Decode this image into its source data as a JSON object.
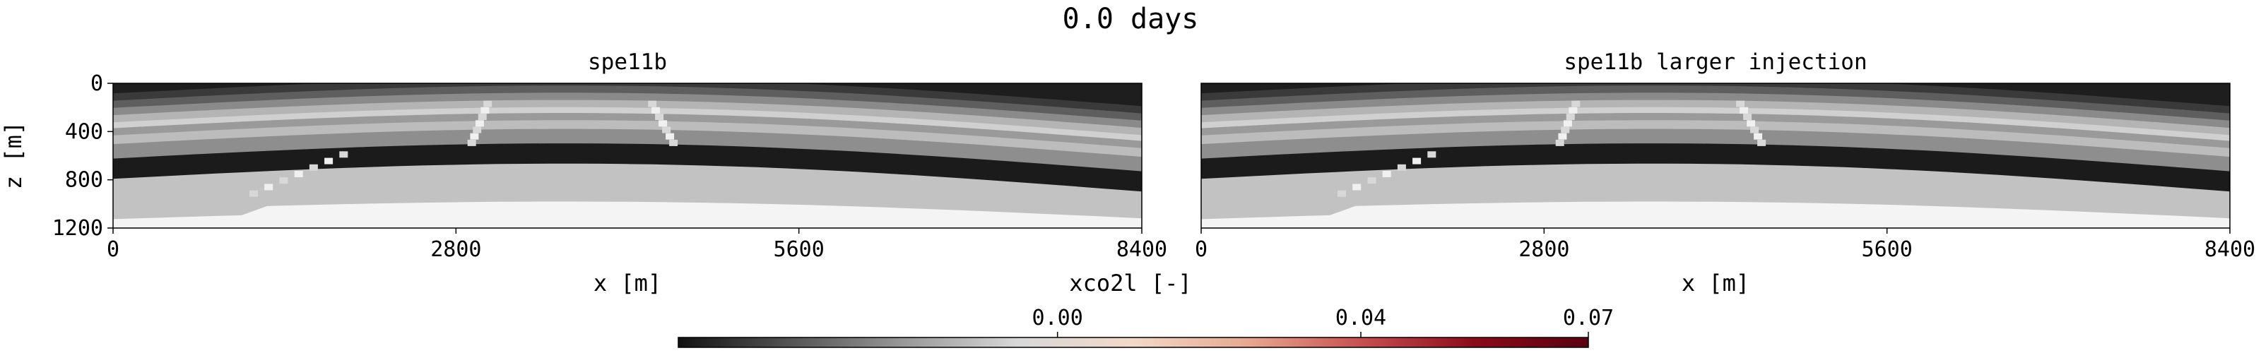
{
  "figure": {
    "title": "0.0 days"
  },
  "chart_data": [
    {
      "type": "heatmap",
      "title": "spe11b",
      "xlabel": "x [m]",
      "ylabel": "z [m]",
      "xlim": [
        0,
        8400
      ],
      "ylim": [
        1200,
        0
      ],
      "xticks": [
        "0",
        "2800",
        "5600",
        "8400"
      ],
      "yticks": [
        "0",
        "400",
        "800",
        "1200"
      ],
      "description_values": "xco2l = 0.00 everywhere; geological layers shown in grayscale"
    },
    {
      "type": "heatmap",
      "title": "spe11b larger injection",
      "xlabel": "x [m]",
      "ylabel": "",
      "xlim": [
        0,
        8400
      ],
      "ylim": [
        1200,
        0
      ],
      "xticks": [
        "0",
        "2800",
        "5600",
        "8400"
      ],
      "yticks": []
    }
  ],
  "colorbar": {
    "label": "xco2l [-]",
    "ticks": [
      "0.00",
      "0.04",
      "0.07"
    ],
    "tick_values": [
      0.0,
      0.04,
      0.07
    ],
    "range": [
      -0.05,
      0.07
    ],
    "colors": [
      "#111111",
      "#555555",
      "#999999",
      "#d8d8d8",
      "#f2d8c8",
      "#e8a890",
      "#c85050",
      "#8b0a1a",
      "#5a0010"
    ]
  }
}
